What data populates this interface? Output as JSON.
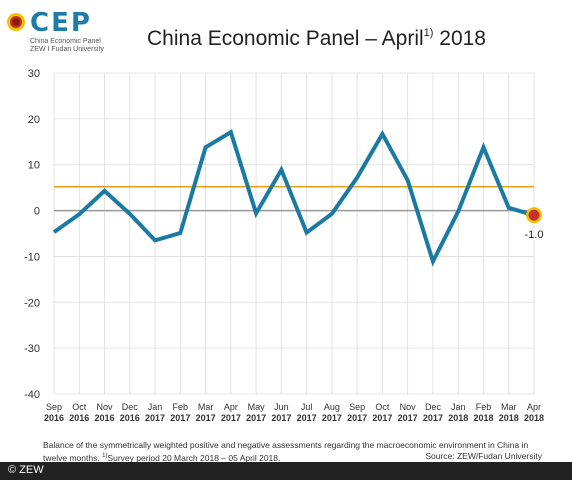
{
  "brand": {
    "logo_text": "CEP",
    "line1": "China Economic Panel",
    "line2": "ZEW I Fudan University"
  },
  "title": {
    "main": "China Economic Panel – April",
    "sup": "1)",
    "year": " 2018"
  },
  "chart_data": {
    "type": "line",
    "categories": [
      "Sep 2016",
      "Oct 2016",
      "Nov 2016",
      "Dec 2016",
      "Jan 2017",
      "Feb 2017",
      "Mar 2017",
      "Apr 2017",
      "May 2017",
      "Jun 2017",
      "Jul 2017",
      "Aug 2017",
      "Sep 2017",
      "Oct 2017",
      "Nov 2017",
      "Dec 2017",
      "Jan 2018",
      "Feb 2018",
      "Mar 2018",
      "Apr 2018"
    ],
    "cat_month": [
      "Sep",
      "Oct",
      "Nov",
      "Dec",
      "Jan",
      "Feb",
      "Mar",
      "Apr",
      "May",
      "Jun",
      "Jul",
      "Aug",
      "Sep",
      "Oct",
      "Nov",
      "Dec",
      "Jan",
      "Feb",
      "Mar",
      "Apr"
    ],
    "cat_year": [
      "2016",
      "2016",
      "2016",
      "2016",
      "2017",
      "2017",
      "2017",
      "2017",
      "2017",
      "2017",
      "2017",
      "2017",
      "2017",
      "2017",
      "2017",
      "2017",
      "2018",
      "2018",
      "2018",
      "2018"
    ],
    "series": [
      {
        "values": [
          -4.7,
          -0.8,
          4.3,
          -0.7,
          -6.5,
          -4.9,
          13.8,
          17.1,
          -0.6,
          8.9,
          -4.8,
          -0.7,
          7.2,
          16.7,
          6.6,
          -11.1,
          -0.2,
          13.8,
          0.6,
          -1.0
        ],
        "color": "#1b7aa3"
      }
    ],
    "reference_line": {
      "value": 5.2,
      "color": "#e8a020"
    },
    "zero_line_color": "#999999",
    "ylim": [
      -40,
      30
    ],
    "yticks": [
      30,
      20,
      10,
      0,
      -10,
      -20,
      -30,
      -40
    ],
    "grid": true,
    "last_label": "-1.0",
    "marker_color": "#c8312a"
  },
  "footnote": {
    "text": "Balance of the symmetrically weighted positive and negative assessments regarding the macroeconomic environment in China in twelve months.",
    "sup": "1)",
    "survey": "Survey period 20 March 2018 – 05 April 2018.",
    "source": "Source: ZEW/Fudan University"
  },
  "copyright": "© ZEW"
}
